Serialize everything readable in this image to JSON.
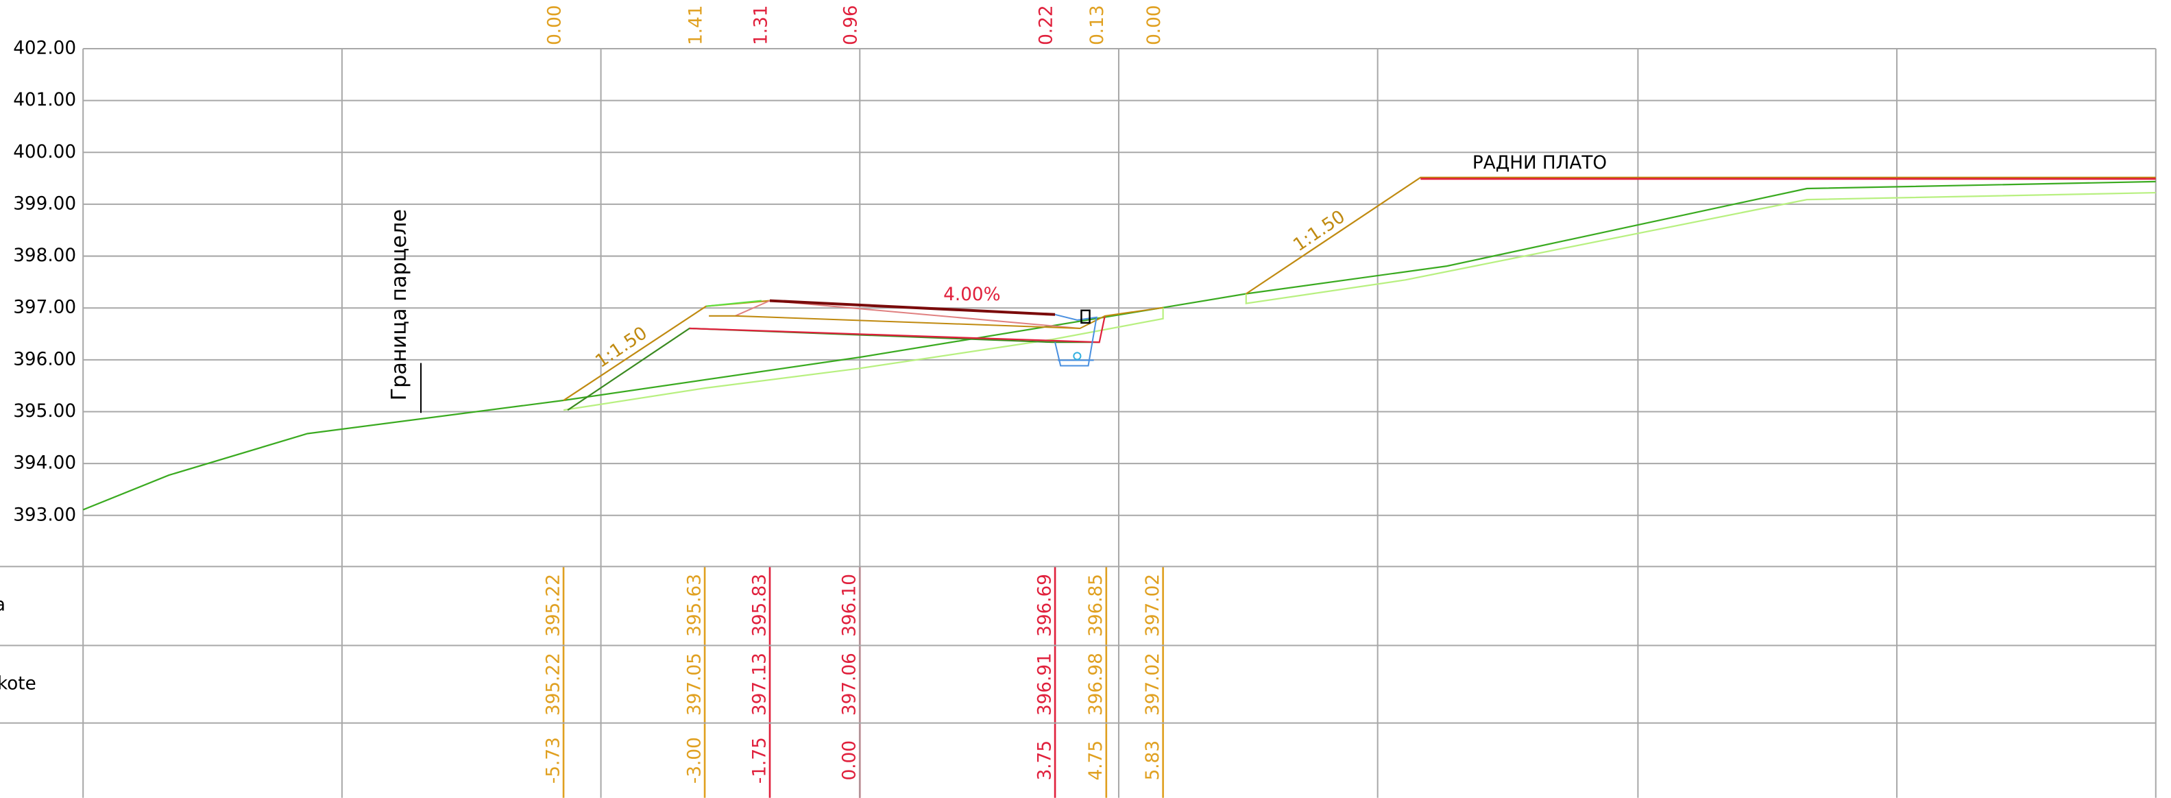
{
  "axis_labels": [
    "402.00",
    "401.00",
    "400.00",
    "399.00",
    "398.00",
    "397.00",
    "396.00",
    "395.00",
    "394.00",
    "393.00"
  ],
  "row_labels": [
    "a",
    "kote"
  ],
  "top_labels": [
    {
      "text": "0.00",
      "color": "#e0a020"
    },
    {
      "text": "1.41",
      "color": "#e0a020"
    },
    {
      "text": "1.31",
      "color": "#e0203c"
    },
    {
      "text": "0.96",
      "color": "#e0203c"
    },
    {
      "text": "0.22",
      "color": "#e0203c"
    },
    {
      "text": "0.13",
      "color": "#e0a020"
    },
    {
      "text": "0.00",
      "color": "#e0a020"
    }
  ],
  "rows": [
    [
      "395.22",
      "395.63",
      "395.83",
      "396.10",
      "396.69",
      "396.85",
      "397.02"
    ],
    [
      "395.22",
      "397.05",
      "397.13",
      "397.06",
      "396.91",
      "396.98",
      "397.02"
    ],
    [
      "-5.73",
      "-3.00",
      "-1.75",
      "0.00",
      "3.75",
      "4.75",
      "5.83"
    ]
  ],
  "annotations": {
    "parcel_boundary": "Граница парцеле",
    "slope_left": "1:1.50",
    "slope_right": "1:1.50",
    "crossfall": "4.00%",
    "work_plateau": "РАДНИ ПЛАТО"
  }
}
